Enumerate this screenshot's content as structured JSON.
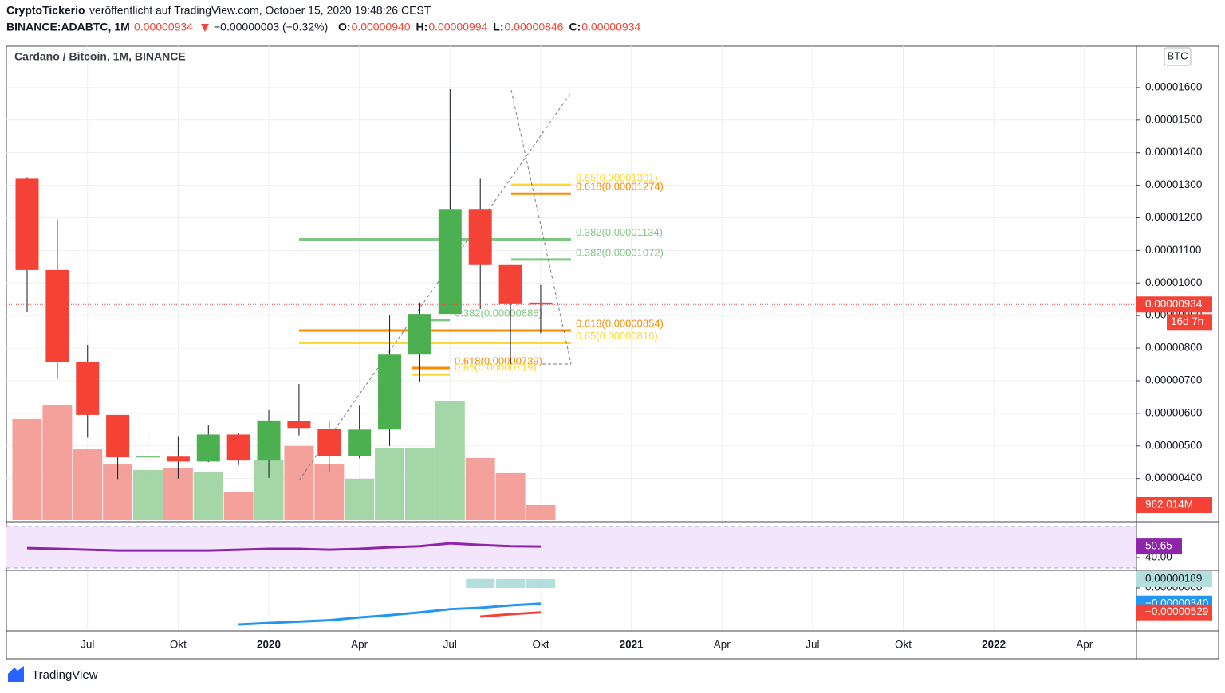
{
  "header": {
    "publisher": "CryptoTickerio",
    "published": "veröffentlicht auf TradingView.com, October 15, 2020 19:48:26 CEST",
    "symbol": "BINANCE:ADABTC, 1M",
    "last": "0.00000934",
    "change": "−0.00000003 (−0.32%)",
    "ohlc": [
      {
        "key": "O:",
        "value": "0.00000940"
      },
      {
        "key": "H:",
        "value": "0.00000994"
      },
      {
        "key": "L:",
        "value": "0.00000846"
      },
      {
        "key": "C:",
        "value": "0.00000934"
      }
    ]
  },
  "chart_data": [
    {
      "type": "candlestick",
      "title": "Cardano / Bitcoin, 1M, BINANCE",
      "unit": "BTC",
      "countdown": "16d 7h",
      "categories": [
        null,
        null,
        "Jul",
        null,
        null,
        "Okt",
        null,
        null,
        "2020",
        null,
        null,
        "Apr",
        null,
        null,
        "Jul",
        null,
        null,
        "Okt",
        null,
        null,
        "2021",
        null,
        null,
        "Apr",
        null,
        null,
        "Jul",
        null,
        null,
        "Okt",
        null,
        null,
        "2022",
        null,
        null,
        "Apr",
        null
      ],
      "open": [
        1.32e-05,
        1.04e-05,
        7.57e-06,
        5.95e-06,
        4.65e-06,
        4.67e-06,
        4.52e-06,
        5.35e-06,
        4.55e-06,
        5.76e-06,
        5.52e-06,
        4.7e-06,
        5.5e-06,
        7.8e-06,
        9.05e-06,
        1.225e-05,
        1.055e-05,
        9.4e-06,
        null,
        null,
        null,
        null,
        null,
        null,
        null,
        null,
        null,
        null,
        null,
        null,
        null,
        null,
        null,
        null,
        null,
        null,
        null
      ],
      "high": [
        1.325e-05,
        1.195e-05,
        8.1e-06,
        5.95e-06,
        5.45e-06,
        5.3e-06,
        5.65e-06,
        5.4e-06,
        6.1e-06,
        6.9e-06,
        5.76e-06,
        6.23e-06,
        9e-06,
        9.4e-06,
        1.595e-05,
        1.32e-05,
        1.055e-05,
        9.94e-06,
        null,
        null,
        null,
        null,
        null,
        null,
        null,
        null,
        null,
        null,
        null,
        null,
        null,
        null,
        null,
        null,
        null,
        null,
        null
      ],
      "low": [
        9.1e-06,
        7.05e-06,
        5.25e-06,
        3.98e-06,
        4.05e-06,
        4e-06,
        4.5e-06,
        4.41e-06,
        4.02e-06,
        5.32e-06,
        4.2e-06,
        4.62e-06,
        5e-06,
        6.98e-06,
        9.05e-06,
        9.2e-06,
        7.5e-06,
        8.46e-06,
        null,
        null,
        null,
        null,
        null,
        null,
        null,
        null,
        null,
        null,
        null,
        null,
        null,
        null,
        null,
        null,
        null,
        null,
        null
      ],
      "close": [
        1.04e-05,
        7.57e-06,
        5.95e-06,
        4.65e-06,
        4.67e-06,
        4.52e-06,
        5.35e-06,
        4.55e-06,
        5.78e-06,
        5.55e-06,
        4.7e-06,
        5.5e-06,
        7.8e-06,
        9.05e-06,
        1.225e-05,
        1.055e-05,
        9.35e-06,
        9.34e-06,
        null,
        null,
        null,
        null,
        null,
        null,
        null,
        null,
        null,
        null,
        null,
        null,
        null,
        null,
        null,
        null,
        null,
        null,
        null
      ],
      "up_color": "#4caf50",
      "down_color": "#f44336",
      "ylim": [
        2.72e-06,
        1.722e-05
      ],
      "yticks": [
        {
          "value": 4e-06,
          "label": "0.00000400"
        },
        {
          "value": 5e-06,
          "label": "0.00000500"
        },
        {
          "value": 6e-06,
          "label": "0.00000600"
        },
        {
          "value": 7e-06,
          "label": "0.00000700"
        },
        {
          "value": 8e-06,
          "label": "0.00000800"
        },
        {
          "value": 9e-06,
          "label": "0.00000900"
        },
        {
          "value": 1e-05,
          "label": "0.00001000"
        },
        {
          "value": 1.1e-05,
          "label": "0.00001100"
        },
        {
          "value": 1.2e-05,
          "label": "0.00001200"
        },
        {
          "value": 1.3e-05,
          "label": "0.00001300"
        },
        {
          "value": 1.4e-05,
          "label": "0.00001400"
        },
        {
          "value": 1.5e-05,
          "label": "0.00001500"
        },
        {
          "value": 1.6e-05,
          "label": "0.00001600"
        }
      ],
      "grid": true,
      "volume": {
        "values": [
          6430,
          7290,
          4500,
          3540,
          3190,
          3290,
          3040,
          1770,
          3800,
          4710,
          3540,
          2630,
          4550,
          4600,
          7540,
          3950,
          2990,
          962.014,
          null,
          null,
          null,
          null,
          null,
          null,
          null,
          null,
          null,
          null,
          null,
          null,
          null,
          null,
          null,
          null,
          null,
          null,
          null
        ],
        "value_labels": [
          null,
          null,
          null,
          null,
          null,
          null,
          null,
          null,
          null,
          null,
          null,
          null,
          null,
          null,
          null,
          null,
          null,
          "962.014M",
          null,
          null,
          null,
          null,
          null,
          null,
          null,
          null,
          null,
          null,
          null,
          null,
          null,
          null,
          null,
          null,
          null,
          null,
          null
        ],
        "ylim": [
          0,
          30000
        ],
        "up_color": "#a5d6a7",
        "down_color": "#f5a19b"
      },
      "fib_levels": [
        {
          "label": "0.65(0.00001301)",
          "value": 1.301e-05,
          "color": "#fdd835"
        },
        {
          "label": "0.618(0.00001274)",
          "value": 1.274e-05,
          "color": "#fb8c00"
        },
        {
          "label": "0.382(0.00001134)",
          "value": 1.134e-05,
          "color": "#81c784"
        },
        {
          "label": "0.382(0.00001072)",
          "value": 1.072e-05,
          "color": "#81c784"
        },
        {
          "label": "0.382(0.00000886)",
          "value": 8.86e-06,
          "color": "#81c784"
        },
        {
          "label": "0.618(0.00000854)",
          "value": 8.54e-06,
          "color": "#fb8c00"
        },
        {
          "label": "0.65(0.00000816)",
          "value": 8.16e-06,
          "color": "#fdd835"
        },
        {
          "label": "0.618(0.00000739)",
          "value": 7.39e-06,
          "color": "#fb8c00"
        },
        {
          "label": "0.65(0.00000719)",
          "value": 7.19e-06,
          "color": "#fdd835"
        }
      ]
    },
    {
      "type": "line",
      "series": [
        {
          "color": "#8e24aa",
          "values": [
            49.1,
            48.4,
            47.6,
            46.8,
            46.8,
            46.8,
            46.8,
            47.6,
            48.4,
            48.4,
            47.6,
            48.4,
            49.9,
            50.9,
            53.7,
            52.2,
            50.9,
            50.65,
            null,
            null,
            null,
            null,
            null,
            null,
            null,
            null,
            null,
            null,
            null,
            null,
            null,
            null,
            null,
            null,
            null,
            null,
            null
          ]
        }
      ],
      "ylim": [
        30,
        73
      ],
      "yticks": [
        {
          "value": 40,
          "label": "40.00"
        }
      ],
      "bands": [
        30,
        70
      ],
      "band_color": "#f3e5fc"
    },
    {
      "type": "line",
      "series": [
        {
          "style": "histogram",
          "color": "#b2dfdb",
          "values": [
            null,
            null,
            null,
            null,
            null,
            null,
            null,
            null,
            null,
            null,
            null,
            null,
            null,
            null,
            null,
            1.95e-06,
            1.9e-06,
            1.89e-06,
            null,
            null,
            null,
            null,
            null,
            null,
            null,
            null,
            null,
            null,
            null,
            null,
            null,
            null,
            null,
            null,
            null,
            null,
            null
          ],
          "value_labels": [
            null,
            null,
            null,
            null,
            null,
            null,
            null,
            null,
            null,
            null,
            null,
            null,
            null,
            null,
            null,
            null,
            null,
            "0.00000189",
            null,
            null,
            null,
            null,
            null,
            null,
            null,
            null,
            null,
            null,
            null,
            null,
            null,
            null,
            null,
            null,
            null,
            null,
            null
          ]
        },
        {
          "color": "#2196f3",
          "values": [
            null,
            null,
            null,
            null,
            null,
            null,
            null,
            -7.93e-06,
            -7.6e-06,
            -7.3e-06,
            -7e-06,
            -6.4e-06,
            -5.9e-06,
            -5.3e-06,
            -4.6e-06,
            -4.3e-06,
            -3.8e-06,
            -3.4e-06,
            null,
            null,
            null,
            null,
            null,
            null,
            null,
            null,
            null,
            null,
            null,
            null,
            null,
            null,
            null,
            null,
            null,
            null,
            null
          ],
          "value_labels": [
            null,
            null,
            null,
            null,
            null,
            null,
            null,
            null,
            null,
            null,
            null,
            null,
            null,
            null,
            null,
            null,
            null,
            "−0.00000340",
            null,
            null,
            null,
            null,
            null,
            null,
            null,
            null,
            null,
            null,
            null,
            null,
            null,
            null,
            null,
            null,
            null,
            null,
            null
          ]
        },
        {
          "color": "#f44336",
          "values": [
            null,
            null,
            null,
            null,
            null,
            null,
            null,
            null,
            null,
            null,
            null,
            null,
            null,
            null,
            null,
            -6.2e-06,
            -5.7e-06,
            -5.29e-06,
            null,
            null,
            null,
            null,
            null,
            null,
            null,
            null,
            null,
            null,
            null,
            null,
            null,
            null,
            null,
            null,
            null,
            null,
            null
          ],
          "value_labels": [
            null,
            null,
            null,
            null,
            null,
            null,
            null,
            null,
            null,
            null,
            null,
            null,
            null,
            null,
            null,
            null,
            null,
            "−0.00000529",
            null,
            null,
            null,
            null,
            null,
            null,
            null,
            null,
            null,
            null,
            null,
            null,
            null,
            null,
            null,
            null,
            null,
            null,
            null
          ]
        }
      ],
      "ylim": [
        -9.31e-06,
        3.45e-06
      ],
      "yticks": [
        {
          "value": 0,
          "label": "0.00000000"
        }
      ]
    }
  ],
  "footer": {
    "brand": "TradingView"
  }
}
